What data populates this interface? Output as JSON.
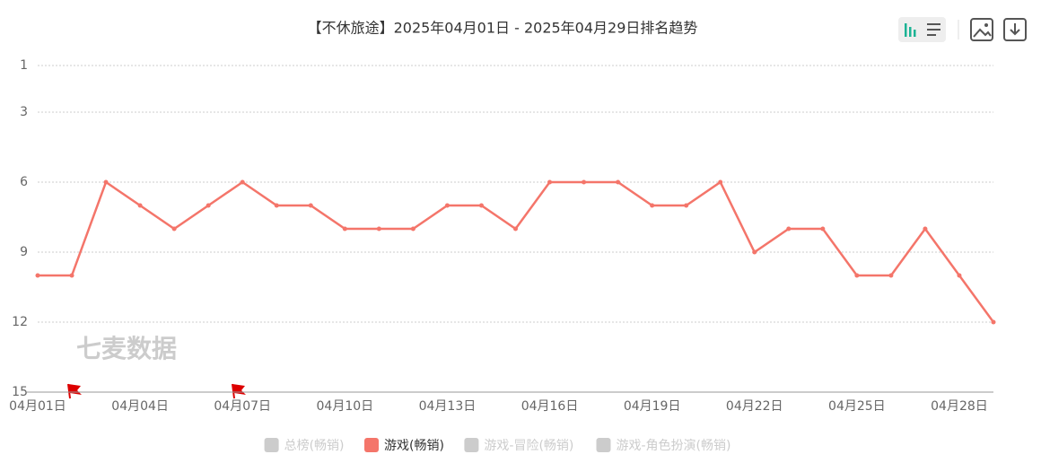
{
  "chart_data": {
    "type": "line",
    "title": "【不休旅途】2025年04月01日 - 2025年04月29日排名趋势",
    "watermark": "七麦数据",
    "categories": [
      "04月01日",
      null,
      null,
      "04月04日",
      null,
      null,
      "04月07日",
      null,
      null,
      "04月10日",
      null,
      null,
      "04月13日",
      null,
      null,
      "04月16日",
      null,
      null,
      "04月19日",
      null,
      null,
      "04月22日",
      null,
      null,
      "04月25日",
      null,
      null,
      "04月28日",
      null
    ],
    "series": [
      {
        "name": "总榜(畅销)",
        "color": "#cccccc",
        "visible": false
      },
      {
        "name": "游戏(畅销)",
        "color": "#f4756a",
        "visible": true,
        "values": [
          10,
          10,
          6,
          7,
          8,
          7,
          6,
          7,
          7,
          8,
          8,
          8,
          7,
          7,
          8,
          6,
          6,
          6,
          7,
          7,
          6,
          9,
          8,
          8,
          10,
          10,
          8,
          10,
          12
        ]
      },
      {
        "name": "游戏-冒险(畅销)",
        "color": "#cccccc",
        "visible": false
      },
      {
        "name": "游戏-角色扮演(畅销)",
        "color": "#cccccc",
        "visible": false
      }
    ],
    "ylim": [
      1,
      15
    ],
    "y_inverted": true,
    "yticks": [
      1,
      3,
      6,
      9,
      12,
      15
    ],
    "grid": true
  }
}
